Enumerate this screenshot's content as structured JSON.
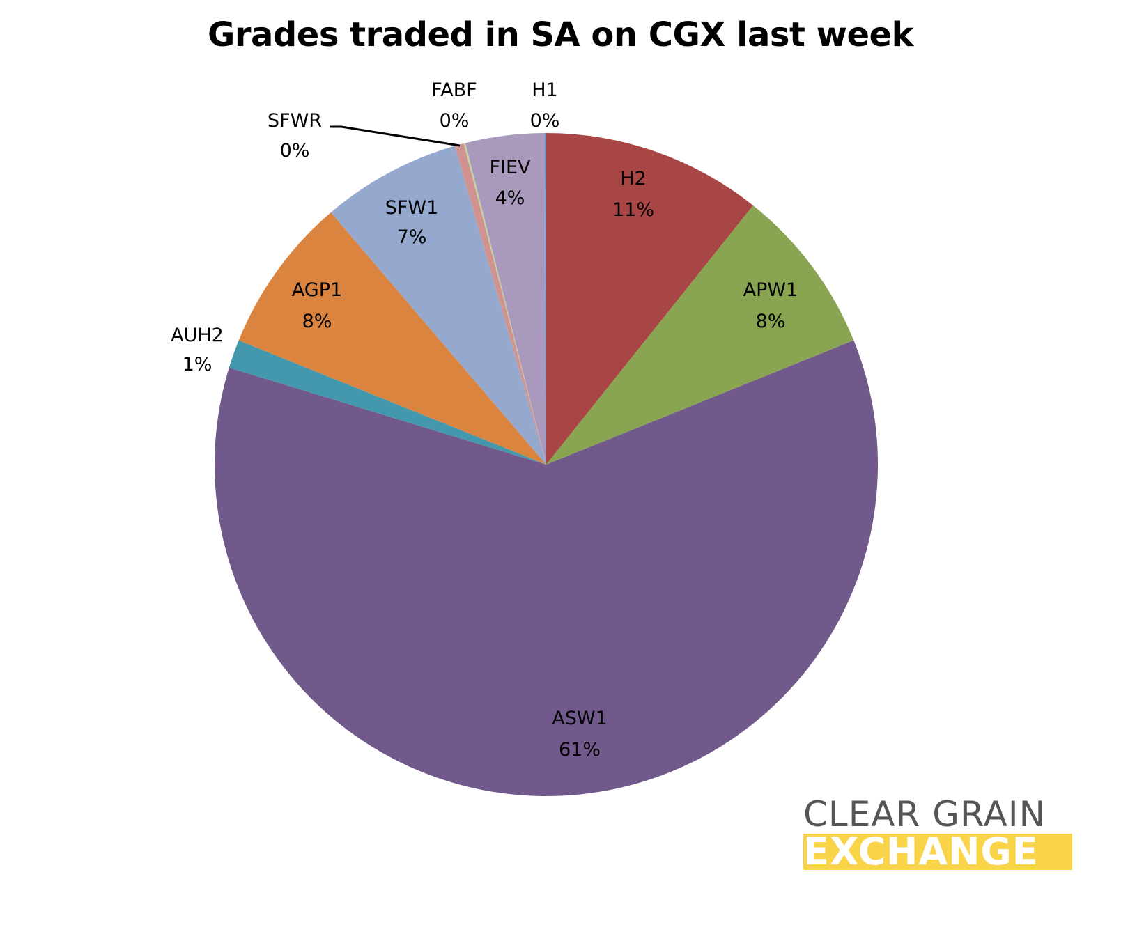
{
  "title": "Grades traded in SA on CGX last week",
  "logo": {
    "line1": "CLEAR GRAIN",
    "line2": "EXCHANGE",
    "accent_color": "#f9d348",
    "text_color": "#555555"
  },
  "chart_data": {
    "type": "pie",
    "title": "Grades traded in SA on CGX last week",
    "start_angle": "12 o'clock, clockwise",
    "slices": [
      {
        "label": "H2",
        "value": 11,
        "display": "11%",
        "color": "#a84646"
      },
      {
        "label": "APW1",
        "value": 8,
        "display": "8%",
        "color": "#8aa552"
      },
      {
        "label": "ASW1",
        "value": 61,
        "display": "61%",
        "color": "#71598c"
      },
      {
        "label": "AUH2",
        "value": 1,
        "display": "1%",
        "color": "#4498ae"
      },
      {
        "label": "AGP1",
        "value": 8,
        "display": "8%",
        "color": "#da843f"
      },
      {
        "label": "SFW1",
        "value": 7,
        "display": "7%",
        "color": "#95a9cf"
      },
      {
        "label": "SFWR",
        "value": 0,
        "display": "0%",
        "color": "#d09391"
      },
      {
        "label": "FABF",
        "value": 0,
        "display": "0%",
        "color": "#c4d49f"
      },
      {
        "label": "FIEV",
        "value": 4,
        "display": "4%",
        "color": "#a899bd"
      },
      {
        "label": "H1",
        "value": 0,
        "display": "0%",
        "color": "#4f81bd"
      }
    ],
    "legend": "none (data labels on slices)"
  }
}
